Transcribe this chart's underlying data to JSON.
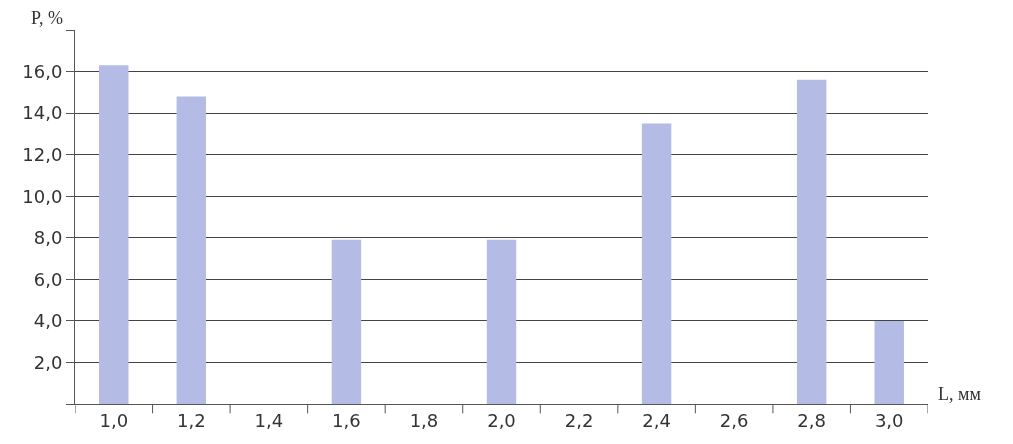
{
  "chart_data": {
    "type": "bar",
    "xlabel": "L, мм",
    "ylabel": "P, %",
    "categories": [
      "1,0",
      "1,2",
      "1,4",
      "1,6",
      "1,8",
      "2,0",
      "2,2",
      "2,4",
      "2,6",
      "2,8",
      "3,0"
    ],
    "values": [
      16.3,
      14.8,
      0,
      7.9,
      0,
      7.9,
      0,
      13.5,
      0,
      15.6,
      4.0
    ],
    "color": "#b4bce6",
    "ylim": [
      0,
      18
    ],
    "yticks": [
      {
        "value": 0,
        "label": null
      },
      {
        "value": 2,
        "label": "2,0"
      },
      {
        "value": 4,
        "label": "4,0"
      },
      {
        "value": 6,
        "label": "6,0"
      },
      {
        "value": 8,
        "label": "8,0"
      },
      {
        "value": 10,
        "label": "10,0"
      },
      {
        "value": 12,
        "label": "12,0"
      },
      {
        "value": 14,
        "label": "14,0"
      },
      {
        "value": 16,
        "label": "16,0"
      },
      {
        "value": 18,
        "label": null
      }
    ],
    "grid": "y",
    "legend": false
  }
}
